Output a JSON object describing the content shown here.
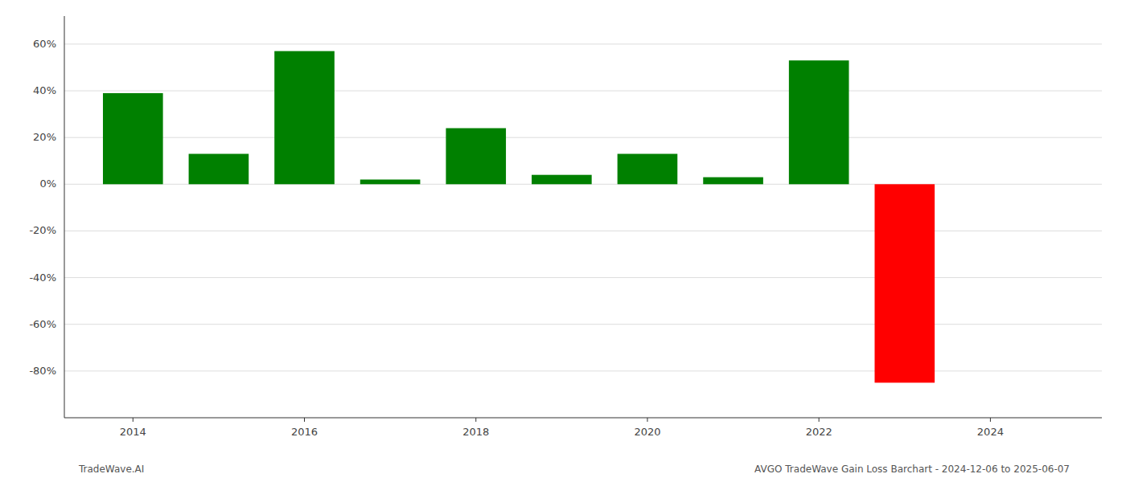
{
  "chart_data": {
    "type": "bar",
    "title": "AVGO TradeWave Gain Loss Barchart - 2024-12-06 to 2025-06-07",
    "annotations": [
      "TradeWave.AI"
    ],
    "x": [
      2014,
      2015,
      2016,
      2017,
      2018,
      2019,
      2020,
      2021,
      2022,
      2023
    ],
    "values": [
      0.39,
      0.13,
      0.57,
      0.02,
      0.24,
      0.04,
      0.13,
      0.03,
      0.53,
      -0.85
    ],
    "colors": [
      "#008000",
      "#008000",
      "#008000",
      "#008000",
      "#008000",
      "#008000",
      "#008000",
      "#008000",
      "#008000",
      "#ff0000"
    ],
    "xlim": [
      2013.2,
      2025.3
    ],
    "xticks": [
      2014,
      2016,
      2018,
      2020,
      2022,
      2024
    ],
    "ylim": [
      -1.0,
      0.72
    ],
    "yticks": [
      {
        "value": -0.8,
        "label": "-80%"
      },
      {
        "value": -0.6,
        "label": "-60%"
      },
      {
        "value": -0.4,
        "label": "-40%"
      },
      {
        "value": -0.2,
        "label": "-20%"
      },
      {
        "value": 0.0,
        "label": "0%"
      },
      {
        "value": 0.2,
        "label": "20%"
      },
      {
        "value": 0.4,
        "label": "40%"
      },
      {
        "value": 0.6,
        "label": "60%"
      }
    ],
    "grid": true
  }
}
